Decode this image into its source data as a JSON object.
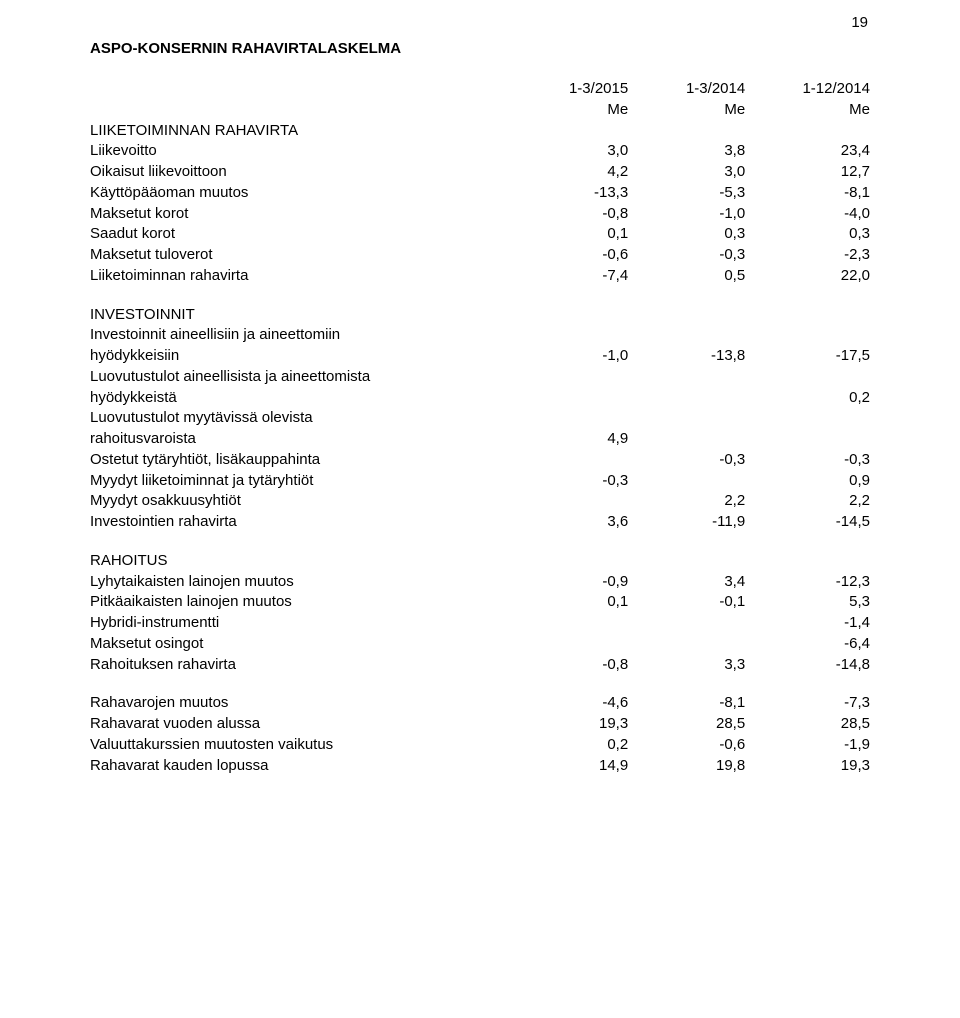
{
  "page_number": "19",
  "title": "ASPO-KONSERNIN RAHAVIRTALASKELMA",
  "headers": {
    "c1_top": "1-3/2015",
    "c2_top": "1-3/2014",
    "c3_top": "1-12/2014",
    "c1_unit": "Me",
    "c2_unit": "Me",
    "c3_unit": "Me"
  },
  "sections": {
    "s1_header": "LIIKETOIMINNAN RAHAVIRTA",
    "s1_rows": [
      {
        "label": "Liikevoitto",
        "c1": "3,0",
        "c2": "3,8",
        "c3": "23,4"
      },
      {
        "label": "Oikaisut liikevoittoon",
        "c1": "4,2",
        "c2": "3,0",
        "c3": "12,7"
      },
      {
        "label": "Käyttöpääoman muutos",
        "c1": "-13,3",
        "c2": "-5,3",
        "c3": "-8,1"
      },
      {
        "label": "Maksetut korot",
        "c1": "-0,8",
        "c2": "-1,0",
        "c3": "-4,0"
      },
      {
        "label": "Saadut korot",
        "c1": "0,1",
        "c2": "0,3",
        "c3": "0,3"
      },
      {
        "label": "Maksetut tuloverot",
        "c1": "-0,6",
        "c2": "-0,3",
        "c3": "-2,3"
      },
      {
        "label": "Liiketoiminnan rahavirta",
        "c1": "-7,4",
        "c2": "0,5",
        "c3": "22,0"
      }
    ],
    "s2_header": "INVESTOINNIT",
    "s2_r1a": "Investoinnit aineellisiin ja aineettomiin",
    "s2_r1b": {
      "label": "hyödykkeisiin",
      "c1": "-1,0",
      "c2": "-13,8",
      "c3": "-17,5"
    },
    "s2_r2a": "Luovutustulot aineellisista ja aineettomista",
    "s2_r2b": {
      "label": "hyödykkeistä",
      "c1": "",
      "c2": "",
      "c3": "0,2"
    },
    "s2_r3a": "Luovutustulot myytävissä olevista",
    "s2_r3b": {
      "label": "rahoitusvaroista",
      "c1": "4,9",
      "c2": "",
      "c3": ""
    },
    "s2_r4": {
      "label": "Ostetut tytäryhtiöt, lisäkauppahinta",
      "c1": "",
      "c2": "-0,3",
      "c3": "-0,3"
    },
    "s2_r5": {
      "label": "Myydyt liiketoiminnat ja tytäryhtiöt",
      "c1": "-0,3",
      "c2": "",
      "c3": "0,9"
    },
    "s2_r6": {
      "label": "Myydyt osakkuusyhtiöt",
      "c1": "",
      "c2": "2,2",
      "c3": "2,2"
    },
    "s2_r7": {
      "label": "Investointien rahavirta",
      "c1": "3,6",
      "c2": "-11,9",
      "c3": "-14,5"
    },
    "s3_header": "RAHOITUS",
    "s3_r1": {
      "label": "Lyhytaikaisten lainojen muutos",
      "c1": "-0,9",
      "c2": "3,4",
      "c3": "-12,3"
    },
    "s3_r2": {
      "label": "Pitkäaikaisten lainojen muutos",
      "c1": "0,1",
      "c2": "-0,1",
      "c3": "5,3"
    },
    "s3_r3": {
      "label": "Hybridi-instrumentti",
      "c1": "",
      "c2": "",
      "c3": "-1,4"
    },
    "s3_r4": {
      "label": "Maksetut osingot",
      "c1": "",
      "c2": "",
      "c3": "-6,4"
    },
    "s3_r5": {
      "label": "Rahoituksen rahavirta",
      "c1": "-0,8",
      "c2": "3,3",
      "c3": "-14,8"
    },
    "s4_r1": {
      "label": "Rahavarojen muutos",
      "c1": "-4,6",
      "c2": "-8,1",
      "c3": "-7,3"
    },
    "s4_r2": {
      "label": "Rahavarat vuoden alussa",
      "c1": "19,3",
      "c2": "28,5",
      "c3": "28,5"
    },
    "s4_r3": {
      "label": "Valuuttakurssien muutosten vaikutus",
      "c1": "0,2",
      "c2": "-0,6",
      "c3": "-1,9"
    },
    "s4_r4": {
      "label": "Rahavarat kauden lopussa",
      "c1": "14,9",
      "c2": "19,8",
      "c3": "19,3"
    }
  }
}
